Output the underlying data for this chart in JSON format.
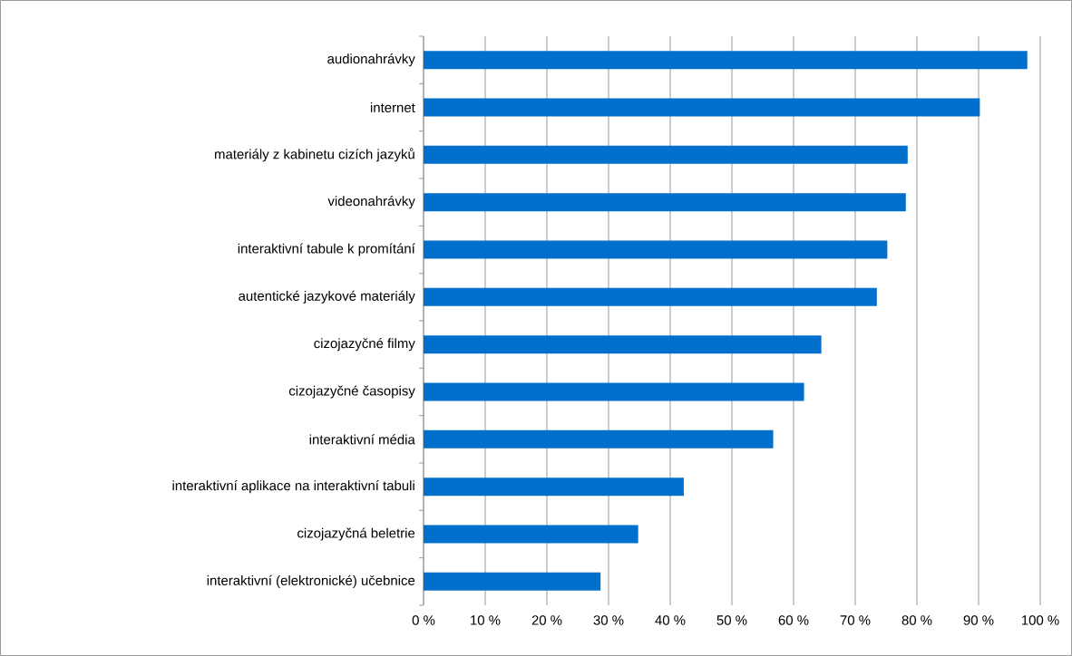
{
  "chart_data": {
    "type": "bar",
    "orientation": "horizontal",
    "categories": [
      "audionahrávky",
      "internet",
      "materiály z kabinetu cizích jazyků",
      "videonahrávky",
      "interaktivní tabule k promítání",
      "autentické jazykové materiály",
      "cizojazyčné filmy",
      "cizojazyčné časopisy",
      "interaktivní média",
      "interaktivní aplikace na interaktivní tabuli",
      "cizojazyčná beletrie",
      "interaktivní (elektronické) učebnice"
    ],
    "values": [
      97.9,
      90.2,
      78.5,
      78.2,
      75.2,
      73.5,
      64.5,
      61.7,
      56.7,
      42.2,
      34.8,
      28.7
    ],
    "color": "#0070cc",
    "xlim": [
      0,
      100
    ],
    "xticks": [
      {
        "value": 0,
        "label": "0 %"
      },
      {
        "value": 10,
        "label": "10 %"
      },
      {
        "value": 20,
        "label": "20 %"
      },
      {
        "value": 30,
        "label": "30 %"
      },
      {
        "value": 40,
        "label": "40 %"
      },
      {
        "value": 50,
        "label": "50 %"
      },
      {
        "value": 60,
        "label": "60 %"
      },
      {
        "value": 70,
        "label": "70 %"
      },
      {
        "value": 80,
        "label": "80 %"
      },
      {
        "value": 90,
        "label": "90 %"
      },
      {
        "value": 100,
        "label": "100 %"
      }
    ],
    "grid": "x"
  }
}
